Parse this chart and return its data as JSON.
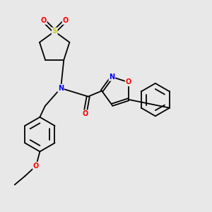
{
  "background_color": "#e8e8e8",
  "atom_colors": {
    "N": "#0000ff",
    "O": "#ff0000",
    "S": "#cccc00"
  },
  "lw": 1.3,
  "fs": 7.0
}
